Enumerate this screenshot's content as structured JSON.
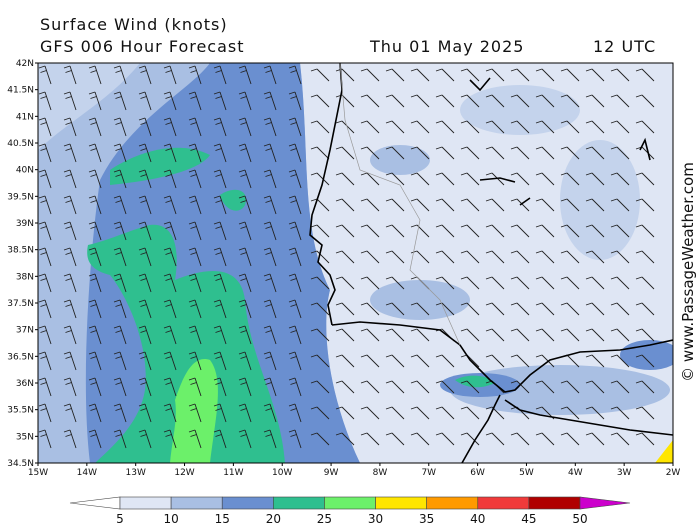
{
  "header": {
    "title": "Surface Wind (knots)",
    "subtitle": "GFS 006 Hour Forecast",
    "date": "Thu 01 May 2025",
    "time": "12 UTC"
  },
  "map": {
    "lat_labels": [
      "42N",
      "41.5N",
      "41N",
      "40.5N",
      "40N",
      "39.5N",
      "39N",
      "38.5N",
      "38N",
      "37.5N",
      "37N",
      "36.5N",
      "36N",
      "35.5N",
      "35N",
      "34.5N"
    ],
    "lon_labels": [
      "15W",
      "14W",
      "13W",
      "12W",
      "11W",
      "10W",
      "9W",
      "8W",
      "7W",
      "6W",
      "5W",
      "4W",
      "3W",
      "2W"
    ]
  },
  "legend": {
    "levels": [
      5,
      10,
      15,
      20,
      25,
      30,
      35,
      40,
      45,
      50
    ],
    "colors": [
      "#ffffff",
      "#dfe6f4",
      "#a9bfe3",
      "#6a8fd0",
      "#2fbf8f",
      "#6cf06a",
      "#ffe600",
      "#ff9a00",
      "#f03a3a",
      "#b00000",
      "#cc00cc"
    ]
  },
  "watermark": "© www.PassageWeather.com"
}
